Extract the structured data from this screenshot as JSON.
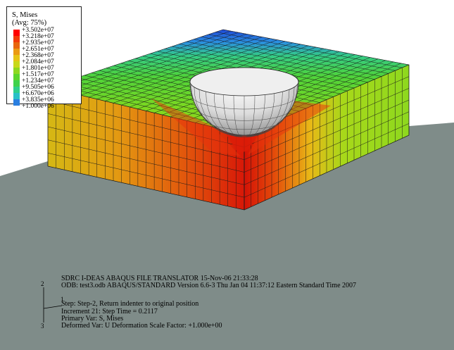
{
  "legend": {
    "title": "S, Mises",
    "subtitle": "(Avg: 75%)",
    "entries": [
      {
        "label": "+3.502e+07",
        "color": "#ff0000"
      },
      {
        "label": "+3.218e+07",
        "color": "#f23a0a"
      },
      {
        "label": "+2.935e+07",
        "color": "#e8660e"
      },
      {
        "label": "+2.651e+07",
        "color": "#eb9a12"
      },
      {
        "label": "+2.368e+07",
        "color": "#e6c416"
      },
      {
        "label": "+2.084e+07",
        "color": "#c8d81a"
      },
      {
        "label": "+1.801e+07",
        "color": "#8ed81e"
      },
      {
        "label": "+1.517e+07",
        "color": "#5cd62a"
      },
      {
        "label": "+1.234e+07",
        "color": "#3ed24c"
      },
      {
        "label": "+9.505e+06",
        "color": "#2ecf8c"
      },
      {
        "label": "+6.670e+06",
        "color": "#28c0c8"
      },
      {
        "label": "+3.835e+06",
        "color": "#2a7fe0"
      },
      {
        "label": "+1.000e+06",
        "color": "#1e3ecf"
      }
    ]
  },
  "triad": {
    "axis_1": "1",
    "axis_2": "2",
    "axis_3": "3"
  },
  "info": {
    "line1": "SDRC I-DEAS ABAQUS FILE TRANSLATOR  15-Nov-06   21:33:28",
    "line2": "ODB: test3.odb    ABAQUS/STANDARD Version 6.6-3    Thu Jan 04 11:37:12 Eastern Standard Time 2007",
    "line3": "Step: Step-2,  Return indenter to original position",
    "line4": "Increment     21: Step Time =    0.2117",
    "line5": "Primary Var: S, Mises",
    "line6": "Deformed Var: U   Deformation Scale Factor: +1.000e+00"
  }
}
